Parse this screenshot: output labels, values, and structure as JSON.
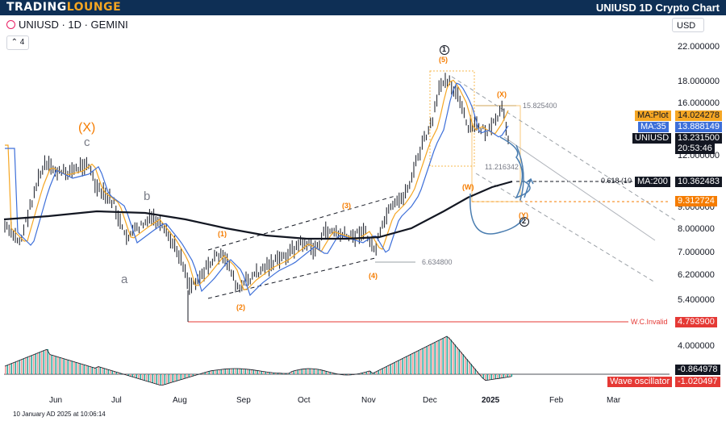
{
  "header": {
    "logo_prefix": "TRADING",
    "logo_suffix": "LOUNGE",
    "title": "UNIUSD 1D Crypto Chart"
  },
  "symbol_line": "UNIUSD · 1D · GEMINI",
  "indicator_count": "4",
  "currency": "USD",
  "timestamp": "10 January AD 2025 at 10:06:14",
  "chart_data": {
    "type": "line",
    "y_axis_labels": [
      "22.000000",
      "18.000000",
      "16.000000",
      "12.000000",
      "9.000000",
      "8.000000",
      "7.000000",
      "6.200000",
      "5.400000",
      "4.000000"
    ],
    "x_axis_labels": [
      "Jun",
      "Jul",
      "Aug",
      "Sep",
      "Oct",
      "Nov",
      "Dec",
      "2025",
      "Feb",
      "Mar"
    ],
    "tags": [
      {
        "label": "MA:Plot",
        "value": "14.024278",
        "color": "#f5a623",
        "label_color": "#131722"
      },
      {
        "label": "MA:35",
        "value": "13.888149",
        "color": "#3d6fd9",
        "label_color": "#ffffff"
      },
      {
        "label": "UNIUSD",
        "value": "13.231500",
        "color": "#131722",
        "label_color": "#ffffff"
      },
      {
        "label": "",
        "value": "20:53:46",
        "color": "#131722",
        "label_color": "#ffffff"
      },
      {
        "label": "MA:200",
        "value": "10.362483",
        "color": "#131722",
        "label_color": "#ffffff"
      },
      {
        "label": "",
        "value": "9.312724",
        "color": "#f57c00",
        "label_color": "#ffffff"
      },
      {
        "label": "W.C.Invalid",
        "value": "4.793900",
        "color": "#e53935",
        "label_color": "#e53935"
      },
      {
        "label": "",
        "value": "-0.864978",
        "color": "#131722",
        "label_color": "#ffffff"
      },
      {
        "label": "Wave oscillator",
        "value": "-1.020497",
        "color": "#e53935",
        "label_color": "#ffffff"
      }
    ],
    "wave_labels": [
      "(1)",
      "(2)",
      "(3)",
      "(4)",
      "(5)",
      "(W)",
      "(X)",
      "(Y)",
      "(X)",
      "c",
      "a",
      "b",
      "1",
      "2"
    ],
    "annotations": [
      "15.825400",
      "11.216342",
      "6.634800",
      "0.618 (10"
    ],
    "level_618_value": "0.618 (10"
  }
}
